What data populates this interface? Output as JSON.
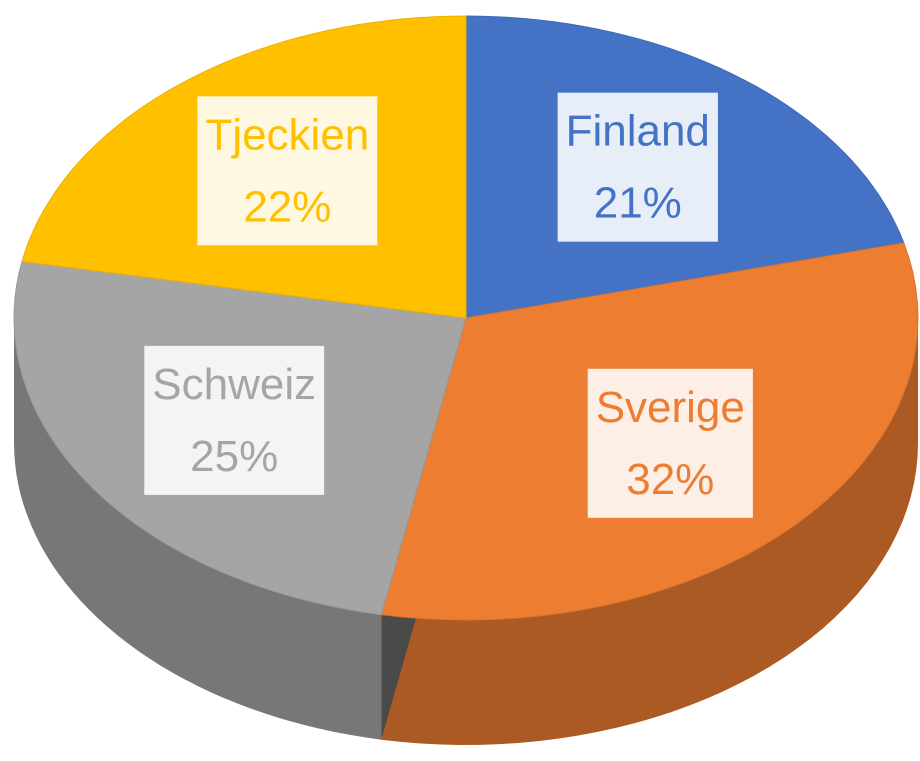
{
  "chart_data": {
    "type": "pie",
    "categories": [
      "Finland",
      "Sverige",
      "Schweiz",
      "Tjeckien"
    ],
    "values": [
      21,
      32,
      25,
      22
    ],
    "value_labels": [
      "21%",
      "32%",
      "25%",
      "22%"
    ],
    "colors": [
      "#4472c4",
      "#ed7d31",
      "#a5a5a5",
      "#ffc000"
    ]
  }
}
